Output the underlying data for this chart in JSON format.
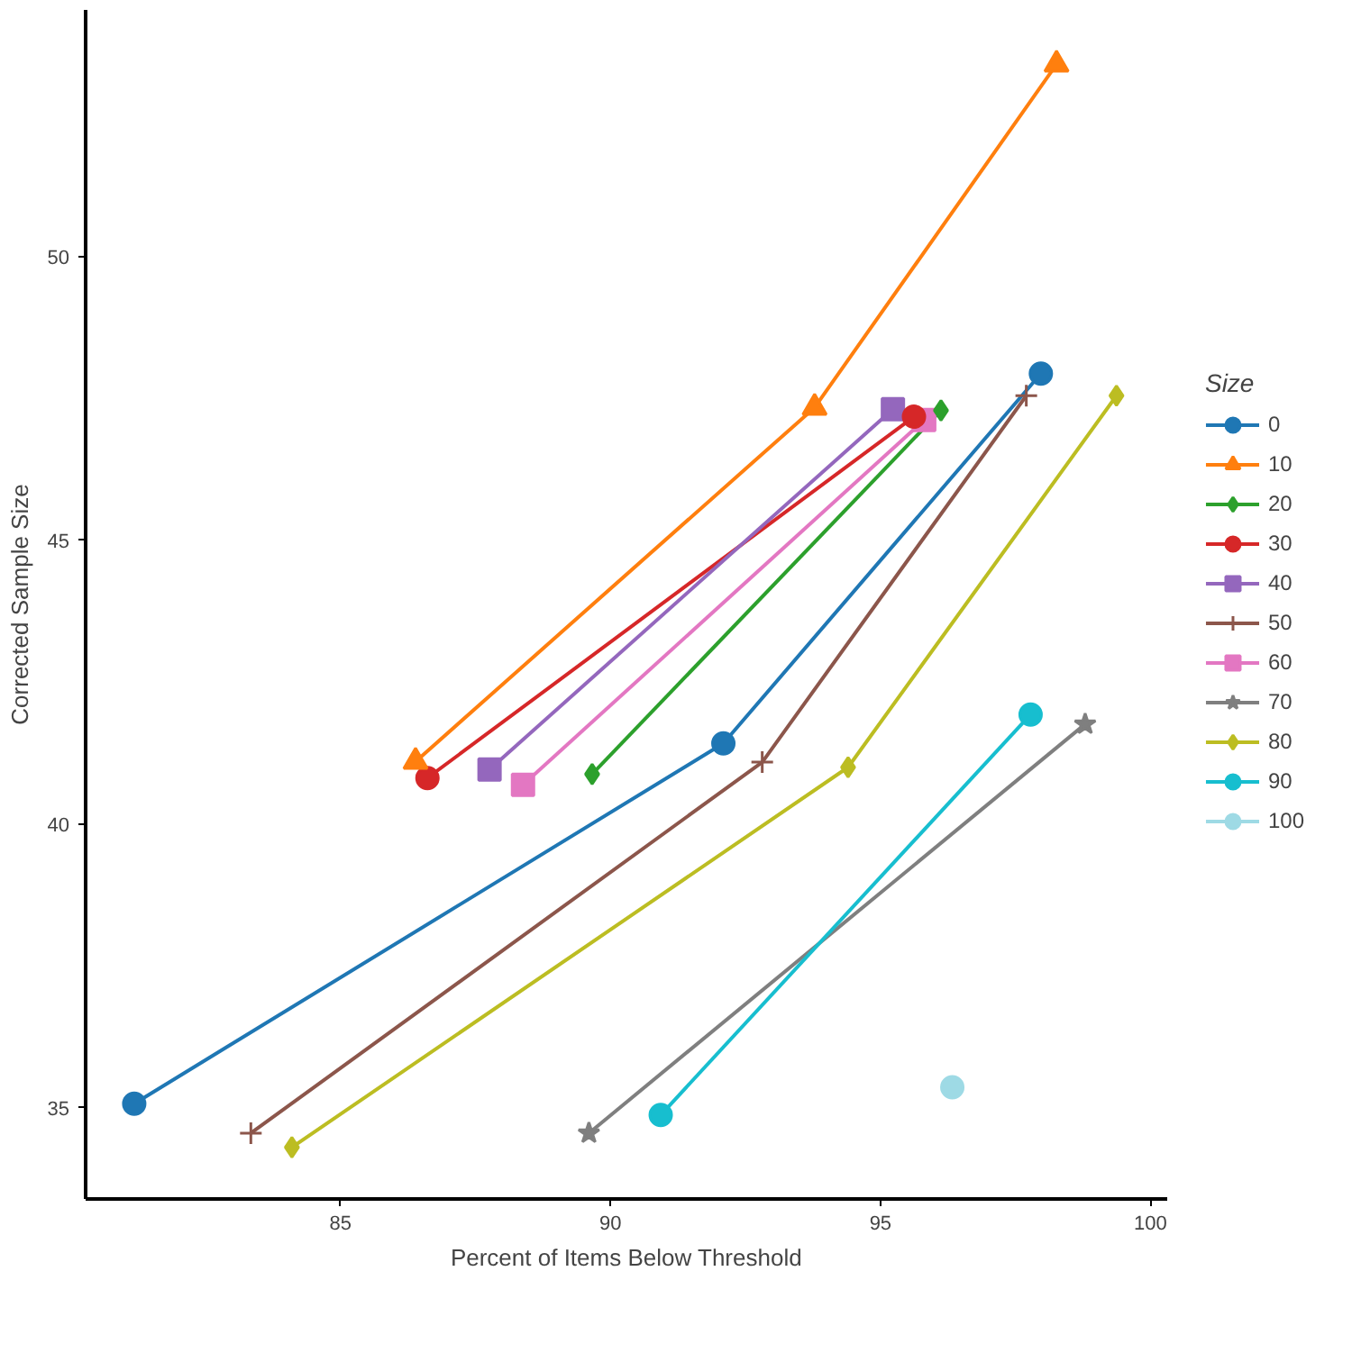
{
  "chart_data": {
    "type": "line",
    "xlabel": "Percent of Items Below Threshold",
    "ylabel": "Corrected Sample Size",
    "legend_title": "Size",
    "legend": "right",
    "grid": false,
    "xlim": [
      80.28,
      100.31
    ],
    "xticks": [
      85,
      90,
      95,
      100
    ],
    "ylim": [
      33.39,
      54.35
    ],
    "yticks": [
      35,
      40,
      45,
      50
    ],
    "series": [
      {
        "name": "0",
        "color": "#1f77b4",
        "marker": "circle",
        "x": [
          81.18,
          92.09,
          97.97
        ],
        "values": [
          35.07,
          41.42,
          47.94
        ]
      },
      {
        "name": "10",
        "color": "#ff7f0e",
        "marker": "triangle",
        "x": [
          86.39,
          93.78,
          98.26
        ],
        "values": [
          41.1,
          47.34,
          53.39
        ]
      },
      {
        "name": "20",
        "color": "#2ca02c",
        "marker": "diamond",
        "x": [
          89.66,
          96.12
        ],
        "values": [
          40.88,
          47.29
        ]
      },
      {
        "name": "30",
        "color": "#d62728",
        "marker": "circle",
        "x": [
          86.61,
          95.62
        ],
        "values": [
          40.81,
          47.18
        ]
      },
      {
        "name": "40",
        "color": "#9467bd",
        "marker": "square",
        "x": [
          87.76,
          95.23
        ],
        "values": [
          40.96,
          47.31
        ]
      },
      {
        "name": "50",
        "color": "#8c564b",
        "marker": "cross",
        "x": [
          83.34,
          92.81,
          97.7
        ],
        "values": [
          34.55,
          41.09,
          47.55
        ]
      },
      {
        "name": "60",
        "color": "#e377c2",
        "marker": "square",
        "x": [
          88.38,
          95.81
        ],
        "values": [
          40.69,
          47.12
        ]
      },
      {
        "name": "70",
        "color": "#7f7f7f",
        "marker": "star",
        "x": [
          89.6,
          98.79
        ],
        "values": [
          34.55,
          41.76
        ]
      },
      {
        "name": "80",
        "color": "#bcbd22",
        "marker": "diamond",
        "x": [
          84.1,
          94.4,
          99.37
        ],
        "values": [
          34.3,
          41.0,
          47.55
        ]
      },
      {
        "name": "90",
        "color": "#17becf",
        "marker": "circle",
        "x": [
          90.93,
          97.78
        ],
        "values": [
          34.87,
          41.93
        ]
      },
      {
        "name": "100",
        "color": "#9edae5",
        "marker": "circle",
        "x": [
          96.33
        ],
        "values": [
          35.36
        ]
      }
    ]
  }
}
